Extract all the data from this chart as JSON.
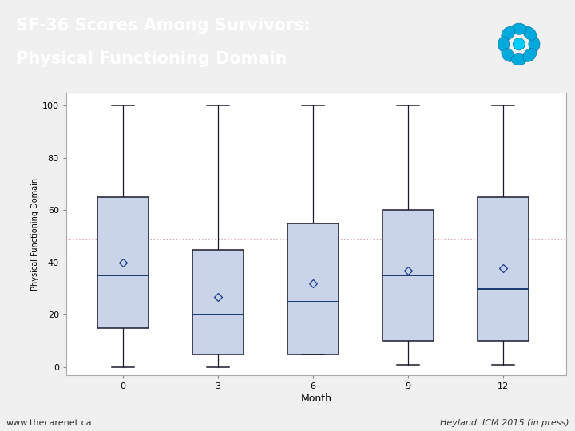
{
  "title_line1": "SF-36 Scores Among Survivors:",
  "title_line2": "Physical Functioning Domain",
  "title_bg_color": "#1a237e",
  "title_text_color": "#ffffff",
  "xlabel": "Month",
  "ylabel": "Physical Functioning Domain",
  "xtick_labels": [
    "0",
    "3",
    "6",
    "9",
    "12"
  ],
  "xtick_positions": [
    0,
    3,
    6,
    9,
    12
  ],
  "ylim": [
    -3,
    105
  ],
  "yticks": [
    0,
    20,
    40,
    60,
    80,
    100
  ],
  "box_data": [
    {
      "x": 0,
      "whisker_low": 0,
      "q1": 15,
      "median": 35,
      "q3": 65,
      "whisker_high": 100,
      "mean": 40
    },
    {
      "x": 3,
      "whisker_low": 0,
      "q1": 5,
      "median": 20,
      "q3": 45,
      "whisker_high": 100,
      "mean": 27
    },
    {
      "x": 6,
      "whisker_low": 5,
      "q1": 5,
      "median": 25,
      "q3": 55,
      "whisker_high": 100,
      "mean": 32
    },
    {
      "x": 9,
      "whisker_low": 1,
      "q1": 10,
      "median": 35,
      "q3": 60,
      "whisker_high": 100,
      "mean": 37
    },
    {
      "x": 12,
      "whisker_low": 1,
      "q1": 10,
      "median": 30,
      "q3": 65,
      "whisker_high": 100,
      "mean": 38
    }
  ],
  "box_width": 1.6,
  "box_face_color": "#c9d4e8",
  "box_edge_color": "#1a1a2e",
  "median_color": "#1a3a6e",
  "whisker_color": "#1a1a2e",
  "mean_marker_color": "#1a3a8e",
  "reference_line_y": 49,
  "reference_line_color": "#cc8888",
  "reference_line_style": "dotted",
  "plot_bg_color": "#ffffff",
  "outer_bg_color": "#f0f0f0",
  "plot_border_color": "#aaaaaa",
  "footer_left": "www.thecarenet.ca",
  "footer_right": "Heyland  ICM 2015 (in press)",
  "footer_color": "#333333",
  "logo_color_outer": "#00aadd",
  "logo_color_inner": "#00ccff"
}
